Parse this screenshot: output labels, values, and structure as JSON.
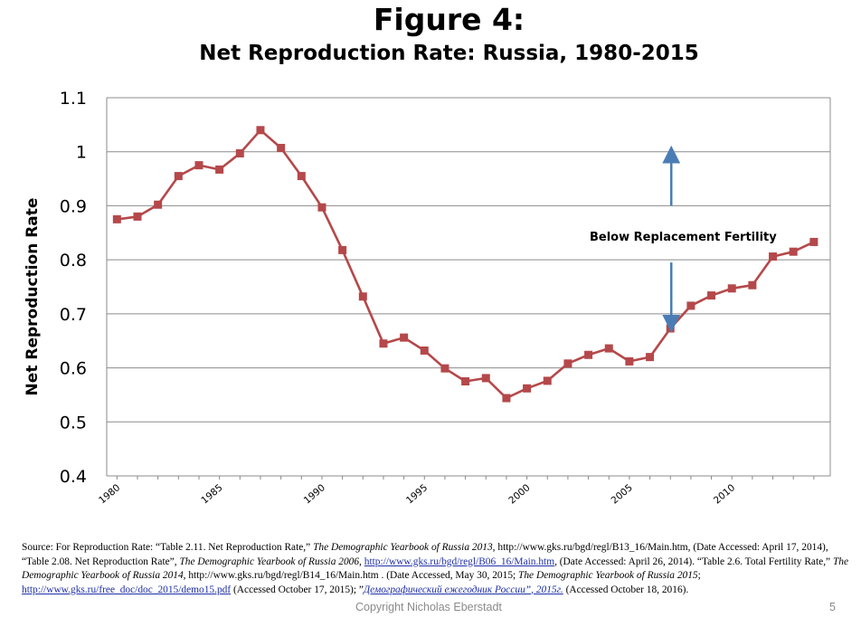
{
  "slide": {
    "title": "Figure 4:",
    "subtitle": "Net Reproduction Rate: Russia, 1980-2015",
    "copyright": "Copyright Nicholas Eberstadt",
    "page_number": "5"
  },
  "source": {
    "s1": "Source: For Reproduction Rate: “Table 2.11. Net Reproduction Rate,” ",
    "s2": "The Demographic Yearbook of Russia 2013",
    "s3": ", http://www.gks.ru/bgd/regl/B13_16/Main.htm, (Date Accessed: April 17, 2014), “Table 2.08. Net Reproduction Rate”, ",
    "s4": "The Demographic Yearbook of Russia 2006",
    "s5": ", ",
    "s6": "http://www.gks.ru/bgd/regl/B06_16/Main.htm",
    "s7": ", (Date Accessed: April 26, 2014). “Table 2.6. Total Fertility Rate,” ",
    "s8": "The Demographic Yearbook of Russia 2014,",
    "s9": " http://www.gks.ru/bgd/regl/B14_16/Main.htm . (Date Accessed, May 30, 2015; ",
    "s10": "The Demographic Yearbook of Russia 2015",
    "s11": "; ",
    "s12": "http://www.gks.ru/free_doc/doc_2015/demo15.pdf",
    "s13": " (Accessed October 17, 2015); ”",
    "s14": "Демографический ежегодник России”, 2015г.",
    "s15": " (Accessed October 18, 2016)."
  },
  "chart_data": {
    "type": "line",
    "title": "Net Reproduction Rate: Russia, 1980-2015",
    "ylabel": "Net Reproduction Rate",
    "xlabel": "",
    "ylim": [
      0.4,
      1.1
    ],
    "yticks": [
      "0.4",
      "0.5",
      "0.6",
      "0.7",
      "0.8",
      "0.9",
      "1",
      "1.1"
    ],
    "xticks": [
      "1980",
      "1985",
      "1990",
      "1995",
      "2000",
      "2005",
      "2010"
    ],
    "grid": true,
    "legend": "none",
    "series": [
      {
        "color": "#b5484a",
        "x": [
          1980,
          1981,
          1982,
          1983,
          1984,
          1985,
          1986,
          1987,
          1988,
          1989,
          1990,
          1991,
          1992,
          1993,
          1994,
          1995,
          1996,
          1997,
          1998,
          1999,
          2000,
          2001,
          2002,
          2003,
          2004,
          2005,
          2006,
          2007,
          2008,
          2009,
          2010,
          2011,
          2012,
          2013,
          2014
        ],
        "values": [
          0.875,
          0.88,
          0.902,
          0.955,
          0.975,
          0.967,
          0.997,
          1.04,
          1.007,
          0.955,
          0.897,
          0.818,
          0.732,
          0.645,
          0.656,
          0.632,
          0.599,
          0.575,
          0.581,
          0.544,
          0.562,
          0.576,
          0.608,
          0.624,
          0.636,
          0.612,
          0.62,
          0.673,
          0.715,
          0.734,
          0.747,
          0.753,
          0.806,
          0.815,
          0.833
        ]
      }
    ],
    "annotations": [
      {
        "text": "Below Replacement Fertility",
        "x": 2007,
        "y_from": 0.675,
        "y_to": 0.995
      }
    ]
  },
  "colors": {
    "line": "#b5484a",
    "arrow": "#4a7db5",
    "grid": "#8c8c8c",
    "axis": "#888888"
  }
}
